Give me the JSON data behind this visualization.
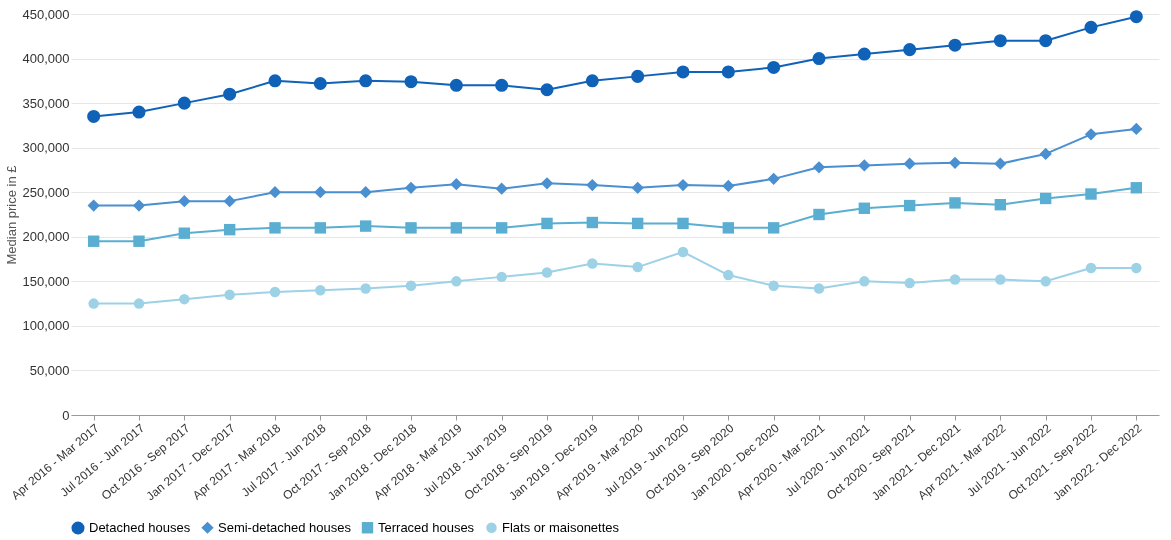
{
  "chart_data": {
    "type": "line",
    "ylabel": "Median price in £",
    "categories": [
      "Apr 2016 - Mar 2017",
      "Jul 2016 - Jun 2017",
      "Oct 2016 - Sep 2017",
      "Jan 2017 - Dec 2017",
      "Apr 2017 - Mar 2018",
      "Jul 2017 - Jun 2018",
      "Oct 2017 - Sep 2018",
      "Jan 2018 - Dec 2018",
      "Apr 2018 - Mar 2019",
      "Jul 2018 - Jun 2019",
      "Oct 2018 - Sep 2019",
      "Jan 2019 - Dec 2019",
      "Apr 2019 - Mar 2020",
      "Jul 2019 - Jun 2020",
      "Oct 2019 - Sep 2020",
      "Jan 2020 - Dec 2020",
      "Apr 2020 - Mar 2021",
      "Jul 2020 - Jun 2021",
      "Oct 2020 - Sep 2021",
      "Jan 2021 - Dec 2021",
      "Apr 2021 - Mar 2022",
      "Jul 2021 - Jun 2022",
      "Oct 2021 - Sep 2022",
      "Jan 2022 - Dec 2022"
    ],
    "series": [
      {
        "name": "Detached houses",
        "color": "#0f62b8",
        "marker": "circle",
        "values": [
          335000,
          340000,
          350000,
          360000,
          375000,
          372000,
          375000,
          374000,
          370000,
          370000,
          365000,
          375000,
          380000,
          385000,
          385000,
          390000,
          400000,
          405000,
          410000,
          415000,
          420000,
          420000,
          435000,
          447000
        ]
      },
      {
        "name": "Semi-detached houses",
        "color": "#4a8fd0",
        "marker": "diamond",
        "values": [
          235000,
          235000,
          240000,
          240000,
          250000,
          250000,
          250000,
          255000,
          259000,
          254000,
          260000,
          258000,
          255000,
          258000,
          257000,
          265000,
          278000,
          280000,
          282000,
          283000,
          282000,
          293000,
          315000,
          321000
        ]
      },
      {
        "name": "Terraced houses",
        "color": "#5aaed2",
        "marker": "square",
        "values": [
          195000,
          195000,
          204000,
          208000,
          210000,
          210000,
          212000,
          210000,
          210000,
          210000,
          215000,
          216000,
          215000,
          215000,
          210000,
          210000,
          225000,
          232000,
          235000,
          238000,
          236000,
          243000,
          248000,
          255000
        ]
      },
      {
        "name": "Flats or maisonettes",
        "color": "#9dd2e6",
        "marker": "circle",
        "values": [
          125000,
          125000,
          130000,
          135000,
          138000,
          140000,
          142000,
          145000,
          150000,
          155000,
          160000,
          170000,
          166000,
          183000,
          157000,
          145000,
          142000,
          150000,
          148000,
          152000,
          152000,
          150000,
          165000,
          165000
        ]
      }
    ],
    "ylim": [
      0,
      450000
    ],
    "yticks": [
      0,
      {
        "value": 50000,
        "label": "50,000"
      },
      {
        "value": 100000,
        "label": "100,000"
      },
      {
        "value": 150000,
        "label": "150,000"
      },
      {
        "value": 200000,
        "label": "200,000"
      },
      {
        "value": 250000,
        "label": "250,000"
      },
      {
        "value": 300000,
        "label": "300,000"
      },
      {
        "value": 350000,
        "label": "350,000"
      },
      {
        "value": 400000,
        "label": "400,000"
      },
      {
        "value": 450000,
        "label": "450,000"
      }
    ],
    "grid": "y",
    "legend": "bottom",
    "line_style": "solid"
  }
}
